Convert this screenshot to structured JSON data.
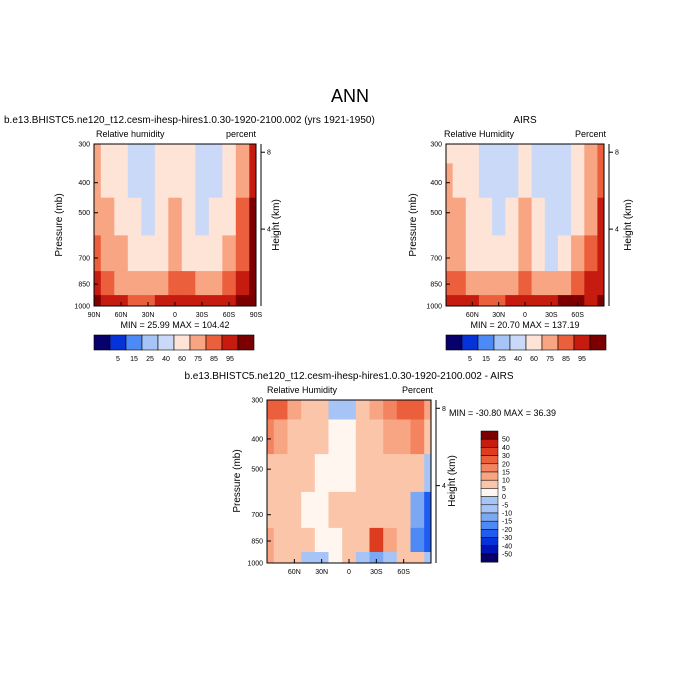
{
  "figure_title": "ANN",
  "colors": {
    "scale_neg": [
      "#08006b",
      "#0013b8",
      "#0533d9",
      "#1f5cf0",
      "#4d8af5",
      "#7ca7f2",
      "#a6c4f5",
      "#cad9f7"
    ],
    "scale_pos": [
      "#fde4d6",
      "#fbc5aa",
      "#f8a583",
      "#f4835f",
      "#ec5f3c",
      "#de3c1e",
      "#c61c10",
      "#a20a08",
      "#7c0000"
    ],
    "near_zero": "#fff6ef"
  },
  "panels": [
    {
      "id": "model",
      "title": "b.e13.BHISTC5.ne120_t12.cesm-ihesp-hires1.0.30-1920-2100.002 (yrs 1921-1950)",
      "left_label": "Relative humidity",
      "right_label": "percent",
      "ylabel": "Pressure (mb)",
      "y2label": "Height (km)",
      "yticks": [
        "300",
        "400",
        "500",
        "700",
        "850",
        "1000"
      ],
      "y2ticks": [
        "8",
        "4"
      ],
      "xticks": [
        "90N",
        "60N",
        "30N",
        "0",
        "30S",
        "60S",
        "90S"
      ],
      "stats": "MIN = 25.99   MAX = 104.42",
      "colorbar_labels": [
        "5",
        "15",
        "25",
        "40",
        "60",
        "75",
        "85",
        "95"
      ]
    },
    {
      "id": "obs",
      "title": "AIRS",
      "left_label": "Relative Humidity",
      "right_label": "Percent",
      "ylabel": "Pressure (mb)",
      "y2label": "Height (km)",
      "yticks": [
        "300",
        "400",
        "500",
        "700",
        "850",
        "1000"
      ],
      "y2ticks": [
        "8",
        "4"
      ],
      "xticks": [
        "60N",
        "30N",
        "0",
        "30S",
        "60S"
      ],
      "stats": "MIN = 20.70   MAX = 137.19",
      "colorbar_labels": [
        "5",
        "15",
        "25",
        "40",
        "60",
        "75",
        "85",
        "95"
      ]
    },
    {
      "id": "diff",
      "title": "b.e13.BHISTC5.ne120_t12.cesm-ihesp-hires1.0.30-1920-2100.002 - AIRS",
      "left_label": "Relative Humidity",
      "right_label": "Percent",
      "ylabel": "Pressure (mb)",
      "y2label": "Height (km)",
      "yticks": [
        "300",
        "400",
        "500",
        "700",
        "850",
        "1000"
      ],
      "y2ticks": [
        "8",
        "4"
      ],
      "xticks": [
        "60N",
        "30N",
        "0",
        "30S",
        "60S"
      ],
      "stats": "MIN = -30.80   MAX = 36.39",
      "colorbar_labels": [
        "50",
        "40",
        "30",
        "20",
        "15",
        "10",
        "5",
        "0",
        "-5",
        "-10",
        "-15",
        "-20",
        "-30",
        "-40",
        "-50"
      ]
    }
  ],
  "chart_data": [
    {
      "type": "heatmap",
      "title": "b.e13.BHISTC5.ne120_t12.cesm-ihesp-hires1.0.30-1920-2100.002 (yrs 1921-1950)",
      "xlabel": "",
      "ylabel": "Pressure (mb)",
      "y2label": "Height (km)",
      "x_ticks": [
        "90N",
        "60N",
        "30N",
        "0",
        "30S",
        "60S",
        "90S"
      ],
      "y_ticks": [
        300,
        400,
        500,
        700,
        850,
        1000
      ],
      "y_scale": "log",
      "levels": [
        5,
        15,
        25,
        40,
        60,
        75,
        85,
        95
      ],
      "lat": [
        90,
        75,
        60,
        45,
        30,
        15,
        0,
        -15,
        -30,
        -45,
        -60,
        -75,
        -90
      ],
      "pressure": [
        300,
        400,
        500,
        700,
        850,
        1000
      ],
      "values": [
        [
          62,
          55,
          45,
          35,
          28,
          40,
          55,
          40,
          28,
          35,
          50,
          70,
          90
        ],
        [
          65,
          58,
          48,
          38,
          30,
          42,
          58,
          42,
          30,
          38,
          52,
          72,
          92
        ],
        [
          70,
          62,
          52,
          40,
          32,
          45,
          62,
          45,
          32,
          40,
          55,
          75,
          95
        ],
        [
          78,
          70,
          60,
          50,
          42,
          55,
          68,
          55,
          45,
          50,
          62,
          80,
          95
        ],
        [
          85,
          80,
          72,
          62,
          60,
          70,
          80,
          75,
          70,
          72,
          78,
          90,
          95
        ],
        [
          95,
          90,
          85,
          78,
          80,
          85,
          92,
          88,
          85,
          88,
          92,
          95,
          95
        ]
      ],
      "min": 25.99,
      "max": 104.42
    },
    {
      "type": "heatmap",
      "title": "AIRS",
      "xlabel": "",
      "ylabel": "Pressure (mb)",
      "y2label": "Height (km)",
      "x_ticks": [
        "60N",
        "30N",
        "0",
        "30S",
        "60S"
      ],
      "y_ticks": [
        300,
        400,
        500,
        700,
        850,
        1000
      ],
      "y_scale": "log",
      "levels": [
        5,
        15,
        25,
        40,
        60,
        75,
        85,
        95
      ],
      "lat": [
        90,
        75,
        60,
        45,
        30,
        15,
        0,
        -15,
        -30,
        -45,
        -60,
        -75,
        -90
      ],
      "pressure": [
        300,
        400,
        500,
        700,
        850,
        1000
      ],
      "values": [
        [
          55,
          50,
          45,
          35,
          30,
          35,
          55,
          35,
          25,
          30,
          45,
          60,
          80
        ],
        [
          60,
          55,
          48,
          38,
          32,
          38,
          58,
          38,
          25,
          32,
          48,
          62,
          82
        ],
        [
          65,
          60,
          52,
          40,
          32,
          42,
          60,
          42,
          25,
          35,
          52,
          68,
          88
        ],
        [
          72,
          68,
          58,
          48,
          40,
          52,
          68,
          52,
          38,
          48,
          62,
          78,
          92
        ],
        [
          80,
          75,
          70,
          62,
          62,
          70,
          78,
          72,
          70,
          72,
          78,
          85,
          92
        ],
        [
          90,
          88,
          85,
          80,
          82,
          85,
          88,
          90,
          92,
          95,
          95,
          92,
          95
        ]
      ],
      "min": 20.7,
      "max": 137.19
    },
    {
      "type": "heatmap",
      "title": "b.e13.BHISTC5.ne120_t12.cesm-ihesp-hires1.0.30-1920-2100.002 - AIRS",
      "xlabel": "",
      "ylabel": "Pressure (mb)",
      "y2label": "Height (km)",
      "x_ticks": [
        "60N",
        "30N",
        "0",
        "30S",
        "60S"
      ],
      "y_ticks": [
        300,
        400,
        500,
        700,
        850,
        1000
      ],
      "y_scale": "log",
      "levels": [
        -50,
        -40,
        -30,
        -20,
        -15,
        -10,
        -5,
        0,
        5,
        10,
        15,
        20,
        30,
        40,
        50
      ],
      "lat": [
        90,
        75,
        60,
        45,
        30,
        15,
        0,
        -15,
        -30,
        -45,
        -60,
        -75,
        -90
      ],
      "pressure": [
        300,
        400,
        500,
        700,
        850,
        1000
      ],
      "values": [
        [
          25,
          20,
          12,
          8,
          5,
          -5,
          -3,
          5,
          10,
          15,
          20,
          25,
          10
        ],
        [
          15,
          12,
          8,
          5,
          3,
          2,
          0,
          5,
          8,
          10,
          12,
          15,
          8
        ],
        [
          8,
          8,
          5,
          3,
          2,
          2,
          2,
          5,
          8,
          8,
          8,
          5,
          -5
        ],
        [
          5,
          5,
          3,
          2,
          2,
          3,
          5,
          5,
          8,
          5,
          3,
          -10,
          -20
        ],
        [
          10,
          8,
          5,
          3,
          2,
          2,
          5,
          8,
          30,
          10,
          5,
          -15,
          -25
        ],
        [
          10,
          8,
          5,
          -5,
          -3,
          2,
          5,
          -5,
          -10,
          -5,
          5,
          5,
          -5
        ]
      ],
      "min": -30.8,
      "max": 36.39
    }
  ]
}
